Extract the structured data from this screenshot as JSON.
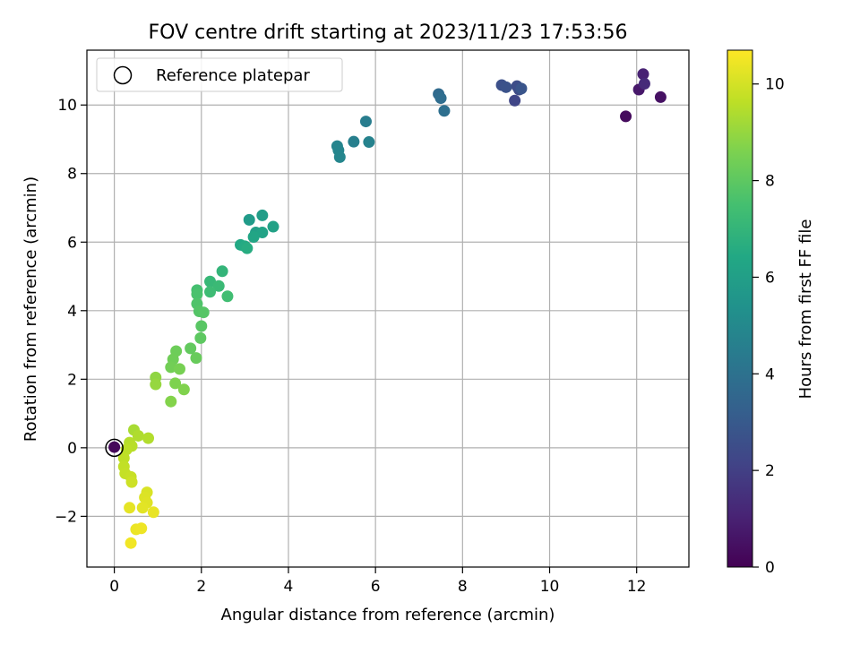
{
  "chart_data": {
    "type": "scatter",
    "title": "FOV centre drift starting at 2023/11/23 17:53:56",
    "xlabel": "Angular distance from reference (arcmin)",
    "ylabel": "Rotation from reference (arcmin)",
    "xlim": [
      -0.63,
      13.2
    ],
    "ylim": [
      -3.48,
      11.6
    ],
    "xticks": [
      0,
      2,
      4,
      6,
      8,
      10,
      12
    ],
    "yticks": [
      -2,
      0,
      2,
      4,
      6,
      8,
      10
    ],
    "grid": true,
    "legend": {
      "placement": "top-left",
      "entries": [
        "Reference platepar"
      ]
    },
    "reference_point": {
      "x": 0,
      "y": 0,
      "marker": "open-circle"
    },
    "colorbar": {
      "label": "Hours from first FF file",
      "min": 0,
      "max": 10.7,
      "ticks": [
        0,
        2,
        4,
        6,
        8,
        10
      ],
      "colormap": "viridis"
    },
    "points": [
      {
        "x": 0.0,
        "y": 0.02,
        "t": 0.2
      },
      {
        "x": 11.75,
        "y": 9.67,
        "t": 0.3
      },
      {
        "x": 12.55,
        "y": 10.23,
        "t": 0.5
      },
      {
        "x": 12.05,
        "y": 10.45,
        "t": 0.7
      },
      {
        "x": 12.15,
        "y": 10.9,
        "t": 1.0
      },
      {
        "x": 12.18,
        "y": 10.62,
        "t": 1.3
      },
      {
        "x": 9.2,
        "y": 10.13,
        "t": 2.2
      },
      {
        "x": 9.3,
        "y": 10.45,
        "t": 2.4
      },
      {
        "x": 9.25,
        "y": 10.55,
        "t": 2.5
      },
      {
        "x": 8.9,
        "y": 10.58,
        "t": 2.6
      },
      {
        "x": 9.0,
        "y": 10.52,
        "t": 2.7
      },
      {
        "x": 9.35,
        "y": 10.48,
        "t": 2.8
      },
      {
        "x": 7.45,
        "y": 10.32,
        "t": 3.7
      },
      {
        "x": 7.5,
        "y": 10.2,
        "t": 3.8
      },
      {
        "x": 7.58,
        "y": 9.83,
        "t": 3.9
      },
      {
        "x": 5.78,
        "y": 9.52,
        "t": 4.5
      },
      {
        "x": 5.5,
        "y": 8.93,
        "t": 4.6
      },
      {
        "x": 5.85,
        "y": 8.92,
        "t": 4.7
      },
      {
        "x": 5.12,
        "y": 8.8,
        "t": 4.8
      },
      {
        "x": 5.15,
        "y": 8.68,
        "t": 4.85
      },
      {
        "x": 5.18,
        "y": 8.48,
        "t": 4.9
      },
      {
        "x": 3.1,
        "y": 6.65,
        "t": 5.8
      },
      {
        "x": 3.4,
        "y": 6.78,
        "t": 5.9
      },
      {
        "x": 3.25,
        "y": 6.28,
        "t": 6.0
      },
      {
        "x": 3.65,
        "y": 6.45,
        "t": 6.1
      },
      {
        "x": 3.4,
        "y": 6.28,
        "t": 6.2
      },
      {
        "x": 3.2,
        "y": 6.15,
        "t": 6.3
      },
      {
        "x": 2.9,
        "y": 5.92,
        "t": 6.4
      },
      {
        "x": 3.0,
        "y": 5.88,
        "t": 6.5
      },
      {
        "x": 3.05,
        "y": 5.82,
        "t": 6.6
      },
      {
        "x": 2.48,
        "y": 5.15,
        "t": 7.0
      },
      {
        "x": 2.2,
        "y": 4.85,
        "t": 7.1
      },
      {
        "x": 2.4,
        "y": 4.72,
        "t": 7.2
      },
      {
        "x": 2.2,
        "y": 4.55,
        "t": 7.3
      },
      {
        "x": 2.6,
        "y": 4.42,
        "t": 7.4
      },
      {
        "x": 1.9,
        "y": 4.6,
        "t": 7.5
      },
      {
        "x": 1.9,
        "y": 4.48,
        "t": 7.6
      },
      {
        "x": 1.9,
        "y": 4.2,
        "t": 7.7
      },
      {
        "x": 1.95,
        "y": 3.98,
        "t": 7.8
      },
      {
        "x": 2.05,
        "y": 3.95,
        "t": 7.85
      },
      {
        "x": 2.0,
        "y": 3.55,
        "t": 7.9
      },
      {
        "x": 1.98,
        "y": 3.2,
        "t": 8.0
      },
      {
        "x": 1.75,
        "y": 2.9,
        "t": 8.1
      },
      {
        "x": 1.88,
        "y": 2.62,
        "t": 8.2
      },
      {
        "x": 1.42,
        "y": 2.82,
        "t": 8.3
      },
      {
        "x": 1.35,
        "y": 2.58,
        "t": 8.35
      },
      {
        "x": 1.3,
        "y": 2.35,
        "t": 8.4
      },
      {
        "x": 1.5,
        "y": 2.3,
        "t": 8.5
      },
      {
        "x": 1.4,
        "y": 1.88,
        "t": 8.6
      },
      {
        "x": 1.6,
        "y": 1.7,
        "t": 8.65
      },
      {
        "x": 1.3,
        "y": 1.35,
        "t": 8.7
      },
      {
        "x": 0.95,
        "y": 2.05,
        "t": 8.9
      },
      {
        "x": 0.95,
        "y": 1.85,
        "t": 9.0
      },
      {
        "x": 0.45,
        "y": 0.52,
        "t": 9.3
      },
      {
        "x": 0.55,
        "y": 0.35,
        "t": 9.4
      },
      {
        "x": 0.78,
        "y": 0.28,
        "t": 9.45
      },
      {
        "x": 0.35,
        "y": 0.15,
        "t": 9.5
      },
      {
        "x": 0.4,
        "y": 0.05,
        "t": 9.55
      },
      {
        "x": 0.28,
        "y": -0.05,
        "t": 9.6
      },
      {
        "x": 0.22,
        "y": -0.3,
        "t": 9.65
      },
      {
        "x": 0.22,
        "y": -0.55,
        "t": 9.7
      },
      {
        "x": 0.25,
        "y": -0.75,
        "t": 9.75
      },
      {
        "x": 0.38,
        "y": -0.85,
        "t": 9.8
      },
      {
        "x": 0.4,
        "y": -1.0,
        "t": 9.9
      },
      {
        "x": 0.75,
        "y": -1.3,
        "t": 10.1
      },
      {
        "x": 0.7,
        "y": -1.45,
        "t": 10.15
      },
      {
        "x": 0.75,
        "y": -1.6,
        "t": 10.2
      },
      {
        "x": 0.65,
        "y": -1.75,
        "t": 10.25
      },
      {
        "x": 0.35,
        "y": -1.75,
        "t": 10.3
      },
      {
        "x": 0.9,
        "y": -1.88,
        "t": 10.35
      },
      {
        "x": 0.5,
        "y": -2.38,
        "t": 10.4
      },
      {
        "x": 0.62,
        "y": -2.35,
        "t": 10.45
      },
      {
        "x": 0.38,
        "y": -2.78,
        "t": 10.5
      }
    ]
  }
}
